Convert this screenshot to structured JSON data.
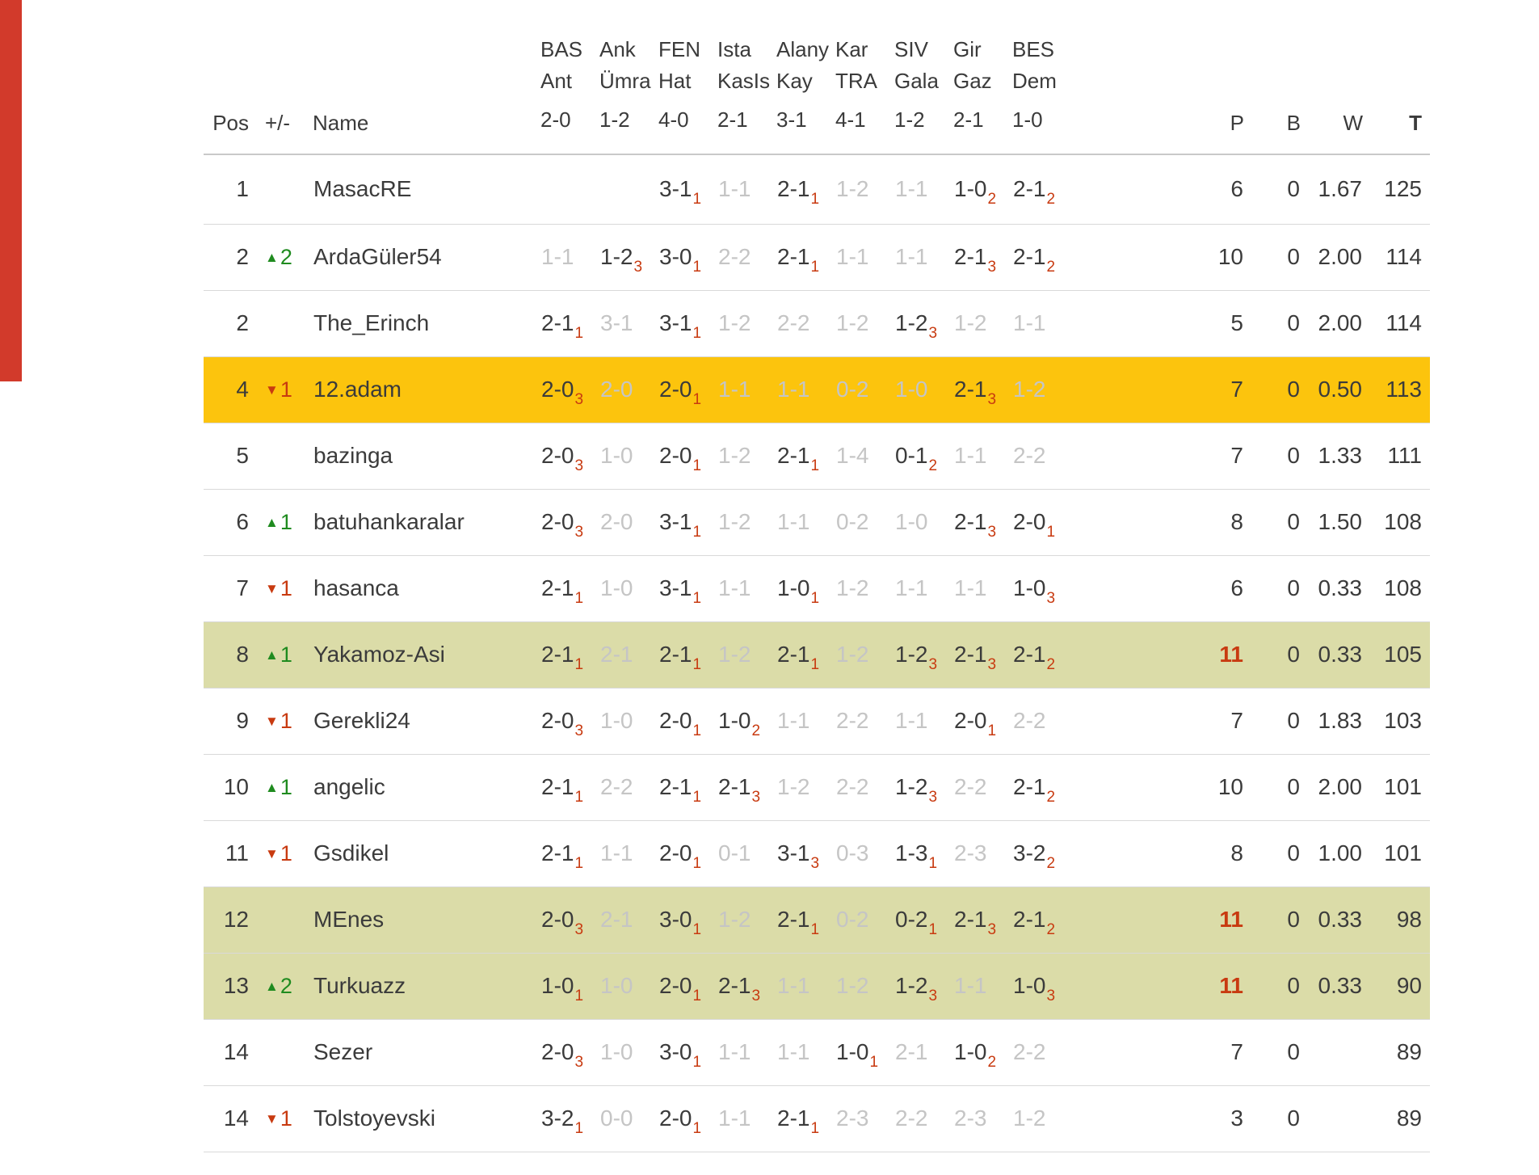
{
  "page": {
    "left_strip_color": "#d23a2b"
  },
  "colors": {
    "highlight_yellow": "#fcc40d",
    "highlight_khaki": "#dbdca8",
    "red": "#c83a10",
    "green": "#1f8b1f",
    "muted": "#c5c5c5",
    "text": "#3b3b3b"
  },
  "table": {
    "headers": {
      "pos": "Pos",
      "change": "+/-",
      "name": "Name",
      "matches": [
        {
          "home": "BAS",
          "away": "Ant",
          "score": "2-0"
        },
        {
          "home": "Ank",
          "away": "Ümra",
          "score": "1-2"
        },
        {
          "home": "FEN",
          "away": "Hat",
          "score": "4-0"
        },
        {
          "home": "Ista",
          "away": "KasIs",
          "score": "2-1"
        },
        {
          "home": "Alany",
          "away": "Kay",
          "score": "3-1"
        },
        {
          "home": "Kar",
          "away": "TRA",
          "score": "4-1"
        },
        {
          "home": "SIV",
          "away": "Gala",
          "score": "1-2"
        },
        {
          "home": "Gir",
          "away": "Gaz",
          "score": "2-1"
        },
        {
          "home": "BES",
          "away": "Dem",
          "score": "1-0"
        }
      ],
      "stats": [
        "P",
        "B",
        "W",
        "T"
      ]
    },
    "rows": [
      {
        "pos": "1",
        "dir": "",
        "chg": "",
        "name": "MasacRE",
        "highlight": "",
        "preds": [
          {
            "s": "",
            "sub": ""
          },
          {
            "s": "",
            "sub": ""
          },
          {
            "s": "3-1",
            "sub": "1"
          },
          {
            "s": "1-1",
            "sub": ""
          },
          {
            "s": "2-1",
            "sub": "1"
          },
          {
            "s": "1-2",
            "sub": ""
          },
          {
            "s": "1-1",
            "sub": ""
          },
          {
            "s": "1-0",
            "sub": "2"
          },
          {
            "s": "2-1",
            "sub": "2"
          }
        ],
        "p": "6",
        "p_red": false,
        "b": "0",
        "w": "1.67",
        "t": "125"
      },
      {
        "pos": "2",
        "dir": "up",
        "chg": "2",
        "name": "ArdaGüler54",
        "highlight": "",
        "preds": [
          {
            "s": "1-1",
            "sub": ""
          },
          {
            "s": "1-2",
            "sub": "3"
          },
          {
            "s": "3-0",
            "sub": "1"
          },
          {
            "s": "2-2",
            "sub": ""
          },
          {
            "s": "2-1",
            "sub": "1"
          },
          {
            "s": "1-1",
            "sub": ""
          },
          {
            "s": "1-1",
            "sub": ""
          },
          {
            "s": "2-1",
            "sub": "3"
          },
          {
            "s": "2-1",
            "sub": "2"
          }
        ],
        "p": "10",
        "p_red": false,
        "b": "0",
        "w": "2.00",
        "t": "114"
      },
      {
        "pos": "2",
        "dir": "",
        "chg": "",
        "name": "The_Erinch",
        "highlight": "",
        "preds": [
          {
            "s": "2-1",
            "sub": "1"
          },
          {
            "s": "3-1",
            "sub": ""
          },
          {
            "s": "3-1",
            "sub": "1"
          },
          {
            "s": "1-2",
            "sub": ""
          },
          {
            "s": "2-2",
            "sub": ""
          },
          {
            "s": "1-2",
            "sub": ""
          },
          {
            "s": "1-2",
            "sub": "3"
          },
          {
            "s": "1-2",
            "sub": ""
          },
          {
            "s": "1-1",
            "sub": ""
          }
        ],
        "p": "5",
        "p_red": false,
        "b": "0",
        "w": "2.00",
        "t": "114"
      },
      {
        "pos": "4",
        "dir": "down",
        "chg": "1",
        "name": "12.adam",
        "highlight": "yellow",
        "preds": [
          {
            "s": "2-0",
            "sub": "3"
          },
          {
            "s": "2-0",
            "sub": ""
          },
          {
            "s": "2-0",
            "sub": "1"
          },
          {
            "s": "1-1",
            "sub": ""
          },
          {
            "s": "1-1",
            "sub": ""
          },
          {
            "s": "0-2",
            "sub": ""
          },
          {
            "s": "1-0",
            "sub": ""
          },
          {
            "s": "2-1",
            "sub": "3"
          },
          {
            "s": "1-2",
            "sub": ""
          }
        ],
        "p": "7",
        "p_red": false,
        "b": "0",
        "w": "0.50",
        "t": "113"
      },
      {
        "pos": "5",
        "dir": "",
        "chg": "",
        "name": "bazinga",
        "highlight": "",
        "preds": [
          {
            "s": "2-0",
            "sub": "3"
          },
          {
            "s": "1-0",
            "sub": ""
          },
          {
            "s": "2-0",
            "sub": "1"
          },
          {
            "s": "1-2",
            "sub": ""
          },
          {
            "s": "2-1",
            "sub": "1"
          },
          {
            "s": "1-4",
            "sub": ""
          },
          {
            "s": "0-1",
            "sub": "2"
          },
          {
            "s": "1-1",
            "sub": ""
          },
          {
            "s": "2-2",
            "sub": ""
          }
        ],
        "p": "7",
        "p_red": false,
        "b": "0",
        "w": "1.33",
        "t": "111"
      },
      {
        "pos": "6",
        "dir": "up",
        "chg": "1",
        "name": "batuhankaralar",
        "highlight": "",
        "preds": [
          {
            "s": "2-0",
            "sub": "3"
          },
          {
            "s": "2-0",
            "sub": ""
          },
          {
            "s": "3-1",
            "sub": "1"
          },
          {
            "s": "1-2",
            "sub": ""
          },
          {
            "s": "1-1",
            "sub": ""
          },
          {
            "s": "0-2",
            "sub": ""
          },
          {
            "s": "1-0",
            "sub": ""
          },
          {
            "s": "2-1",
            "sub": "3"
          },
          {
            "s": "2-0",
            "sub": "1"
          }
        ],
        "p": "8",
        "p_red": false,
        "b": "0",
        "w": "1.50",
        "t": "108"
      },
      {
        "pos": "7",
        "dir": "down",
        "chg": "1",
        "name": "hasanca",
        "highlight": "",
        "preds": [
          {
            "s": "2-1",
            "sub": "1"
          },
          {
            "s": "1-0",
            "sub": ""
          },
          {
            "s": "3-1",
            "sub": "1"
          },
          {
            "s": "1-1",
            "sub": ""
          },
          {
            "s": "1-0",
            "sub": "1"
          },
          {
            "s": "1-2",
            "sub": ""
          },
          {
            "s": "1-1",
            "sub": ""
          },
          {
            "s": "1-1",
            "sub": ""
          },
          {
            "s": "1-0",
            "sub": "3"
          }
        ],
        "p": "6",
        "p_red": false,
        "b": "0",
        "w": "0.33",
        "t": "108"
      },
      {
        "pos": "8",
        "dir": "up",
        "chg": "1",
        "name": "Yakamoz-Asi",
        "highlight": "khaki",
        "preds": [
          {
            "s": "2-1",
            "sub": "1"
          },
          {
            "s": "2-1",
            "sub": ""
          },
          {
            "s": "2-1",
            "sub": "1"
          },
          {
            "s": "1-2",
            "sub": ""
          },
          {
            "s": "2-1",
            "sub": "1"
          },
          {
            "s": "1-2",
            "sub": ""
          },
          {
            "s": "1-2",
            "sub": "3"
          },
          {
            "s": "2-1",
            "sub": "3"
          },
          {
            "s": "2-1",
            "sub": "2"
          }
        ],
        "p": "11",
        "p_red": true,
        "b": "0",
        "w": "0.33",
        "t": "105"
      },
      {
        "pos": "9",
        "dir": "down",
        "chg": "1",
        "name": "Gerekli24",
        "highlight": "",
        "preds": [
          {
            "s": "2-0",
            "sub": "3"
          },
          {
            "s": "1-0",
            "sub": ""
          },
          {
            "s": "2-0",
            "sub": "1"
          },
          {
            "s": "1-0",
            "sub": "2"
          },
          {
            "s": "1-1",
            "sub": ""
          },
          {
            "s": "2-2",
            "sub": ""
          },
          {
            "s": "1-1",
            "sub": ""
          },
          {
            "s": "2-0",
            "sub": "1"
          },
          {
            "s": "2-2",
            "sub": ""
          }
        ],
        "p": "7",
        "p_red": false,
        "b": "0",
        "w": "1.83",
        "t": "103"
      },
      {
        "pos": "10",
        "dir": "up",
        "chg": "1",
        "name": "angelic",
        "highlight": "",
        "preds": [
          {
            "s": "2-1",
            "sub": "1"
          },
          {
            "s": "2-2",
            "sub": ""
          },
          {
            "s": "2-1",
            "sub": "1"
          },
          {
            "s": "2-1",
            "sub": "3"
          },
          {
            "s": "1-2",
            "sub": ""
          },
          {
            "s": "2-2",
            "sub": ""
          },
          {
            "s": "1-2",
            "sub": "3"
          },
          {
            "s": "2-2",
            "sub": ""
          },
          {
            "s": "2-1",
            "sub": "2"
          }
        ],
        "p": "10",
        "p_red": false,
        "b": "0",
        "w": "2.00",
        "t": "101"
      },
      {
        "pos": "11",
        "dir": "down",
        "chg": "1",
        "name": "Gsdikel",
        "highlight": "",
        "preds": [
          {
            "s": "2-1",
            "sub": "1"
          },
          {
            "s": "1-1",
            "sub": ""
          },
          {
            "s": "2-0",
            "sub": "1"
          },
          {
            "s": "0-1",
            "sub": ""
          },
          {
            "s": "3-1",
            "sub": "3"
          },
          {
            "s": "0-3",
            "sub": ""
          },
          {
            "s": "1-3",
            "sub": "1"
          },
          {
            "s": "2-3",
            "sub": ""
          },
          {
            "s": "3-2",
            "sub": "2"
          }
        ],
        "p": "8",
        "p_red": false,
        "b": "0",
        "w": "1.00",
        "t": "101"
      },
      {
        "pos": "12",
        "dir": "",
        "chg": "",
        "name": "MEnes",
        "highlight": "khaki",
        "preds": [
          {
            "s": "2-0",
            "sub": "3"
          },
          {
            "s": "2-1",
            "sub": ""
          },
          {
            "s": "3-0",
            "sub": "1"
          },
          {
            "s": "1-2",
            "sub": ""
          },
          {
            "s": "2-1",
            "sub": "1"
          },
          {
            "s": "0-2",
            "sub": ""
          },
          {
            "s": "0-2",
            "sub": "1"
          },
          {
            "s": "2-1",
            "sub": "3"
          },
          {
            "s": "2-1",
            "sub": "2"
          }
        ],
        "p": "11",
        "p_red": true,
        "b": "0",
        "w": "0.33",
        "t": "98"
      },
      {
        "pos": "13",
        "dir": "up",
        "chg": "2",
        "name": "Turkuazz",
        "highlight": "khaki",
        "preds": [
          {
            "s": "1-0",
            "sub": "1"
          },
          {
            "s": "1-0",
            "sub": ""
          },
          {
            "s": "2-0",
            "sub": "1"
          },
          {
            "s": "2-1",
            "sub": "3"
          },
          {
            "s": "1-1",
            "sub": ""
          },
          {
            "s": "1-2",
            "sub": ""
          },
          {
            "s": "1-2",
            "sub": "3"
          },
          {
            "s": "1-1",
            "sub": ""
          },
          {
            "s": "1-0",
            "sub": "3"
          }
        ],
        "p": "11",
        "p_red": true,
        "b": "0",
        "w": "0.33",
        "t": "90"
      },
      {
        "pos": "14",
        "dir": "",
        "chg": "",
        "name": "Sezer",
        "highlight": "",
        "preds": [
          {
            "s": "2-0",
            "sub": "3"
          },
          {
            "s": "1-0",
            "sub": ""
          },
          {
            "s": "3-0",
            "sub": "1"
          },
          {
            "s": "1-1",
            "sub": ""
          },
          {
            "s": "1-1",
            "sub": ""
          },
          {
            "s": "1-0",
            "sub": "1"
          },
          {
            "s": "2-1",
            "sub": ""
          },
          {
            "s": "1-0",
            "sub": "2"
          },
          {
            "s": "2-2",
            "sub": ""
          }
        ],
        "p": "7",
        "p_red": false,
        "b": "0",
        "w": "",
        "t": "89"
      },
      {
        "pos": "14",
        "dir": "down",
        "chg": "1",
        "name": "Tolstoyevski",
        "highlight": "",
        "preds": [
          {
            "s": "3-2",
            "sub": "1"
          },
          {
            "s": "0-0",
            "sub": ""
          },
          {
            "s": "2-0",
            "sub": "1"
          },
          {
            "s": "1-1",
            "sub": ""
          },
          {
            "s": "2-1",
            "sub": "1"
          },
          {
            "s": "2-3",
            "sub": ""
          },
          {
            "s": "2-2",
            "sub": ""
          },
          {
            "s": "2-3",
            "sub": ""
          },
          {
            "s": "1-2",
            "sub": ""
          }
        ],
        "p": "3",
        "p_red": false,
        "b": "0",
        "w": "",
        "t": "89"
      }
    ]
  }
}
